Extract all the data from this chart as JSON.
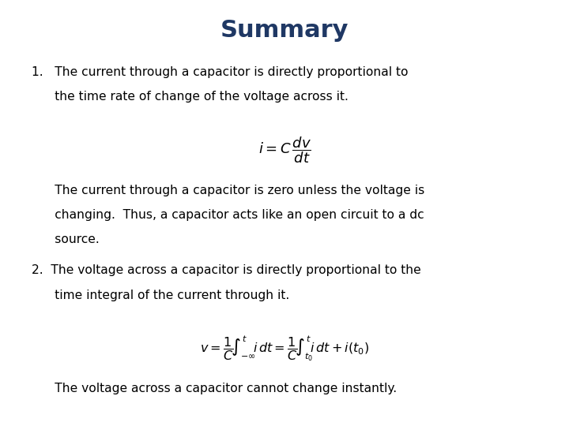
{
  "title": "Summary",
  "title_color": "#1F3864",
  "title_fontsize": 22,
  "background_color": "#ffffff",
  "text_color": "#000000",
  "text_fontsize": 11.2,
  "formula1_fontsize": 13,
  "formula2_fontsize": 11.5
}
